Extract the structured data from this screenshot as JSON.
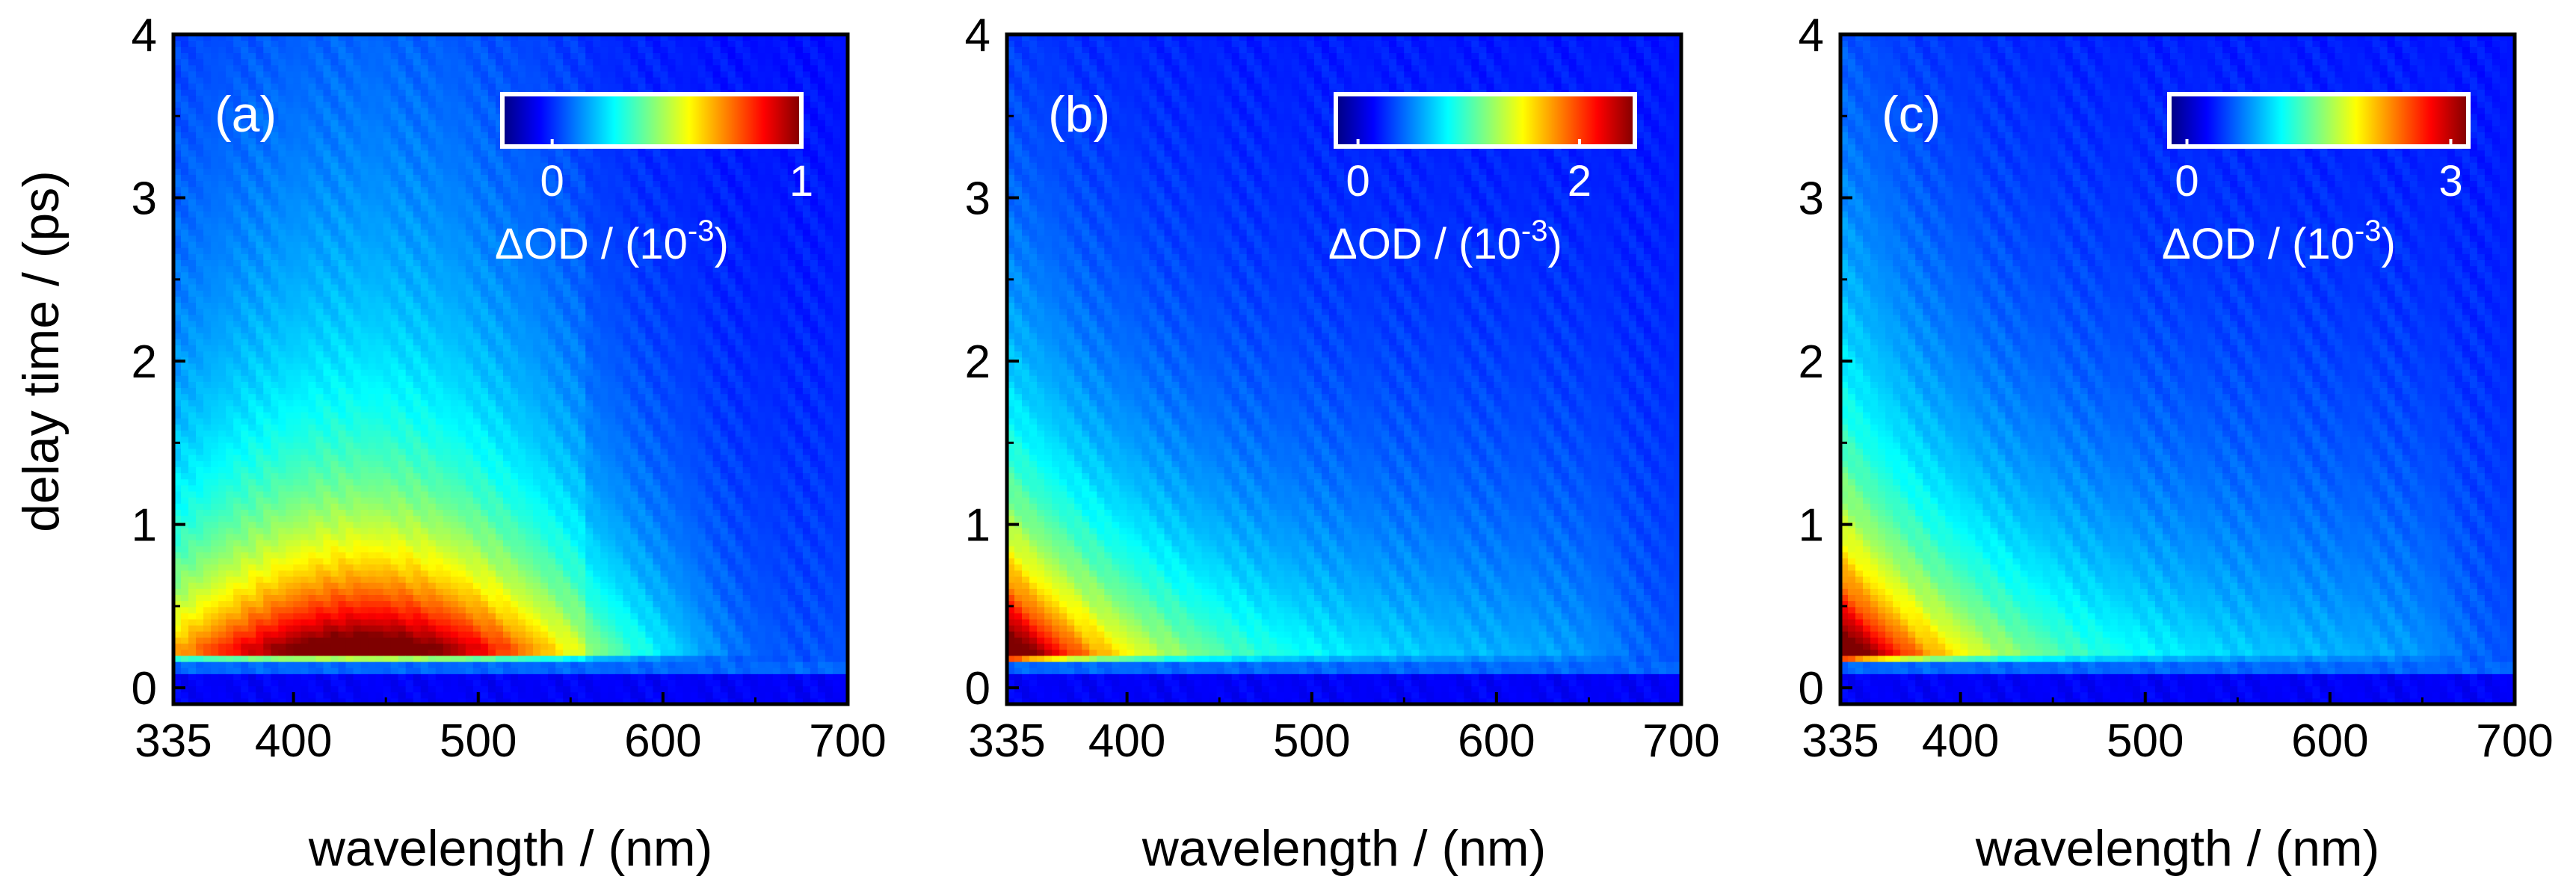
{
  "figure": {
    "ylabel": "delay time / (ps)"
  },
  "colormap": [
    "#00007f",
    "#0000ff",
    "#0080ff",
    "#00ffff",
    "#80ff80",
    "#ffff00",
    "#ff8000",
    "#ff0000",
    "#7f0000"
  ],
  "chart_data": [
    {
      "type": "heatmap",
      "panel_label": "(a)",
      "xlabel": "wavelength / (nm)",
      "ylabel": "delay time / (ps)",
      "xlim": [
        335,
        700
      ],
      "ylim": [
        -0.1,
        4
      ],
      "xticks": [
        335,
        400,
        500,
        600,
        700
      ],
      "yticks": [
        0,
        1,
        2,
        3,
        4
      ],
      "colorbar": {
        "label": "ΔOD / (10",
        "exponent": "-3",
        "label_close": ")",
        "ticks": [
          0,
          1
        ],
        "range": [
          -0.2,
          1.0
        ]
      },
      "peak": {
        "wavelength_nm": 440,
        "delay_ps": 0.22,
        "value": 1.0
      }
    },
    {
      "type": "heatmap",
      "panel_label": "(b)",
      "xlabel": "wavelength / (nm)",
      "ylabel": "",
      "xlim": [
        335,
        700
      ],
      "ylim": [
        -0.1,
        4
      ],
      "xticks": [
        335,
        400,
        500,
        600,
        700
      ],
      "yticks": [
        0,
        1,
        2,
        3,
        4
      ],
      "colorbar": {
        "label": "ΔOD / (10",
        "exponent": "-3",
        "label_close": ")",
        "ticks": [
          0,
          2
        ],
        "range": [
          -0.2,
          2.5
        ]
      },
      "peak": {
        "wavelength_nm": 337,
        "delay_ps": 0.5,
        "value": 2.5
      }
    },
    {
      "type": "heatmap",
      "panel_label": "(c)",
      "xlabel": "wavelength / (nm)",
      "ylabel": "",
      "xlim": [
        335,
        700
      ],
      "ylim": [
        -0.1,
        4
      ],
      "xticks": [
        335,
        400,
        500,
        600,
        700
      ],
      "yticks": [
        0,
        1,
        2,
        3,
        4
      ],
      "colorbar": {
        "label": "ΔOD / (10",
        "exponent": "-3",
        "label_close": ")",
        "ticks": [
          0,
          3
        ],
        "range": [
          -0.2,
          3.2
        ]
      },
      "peak": {
        "wavelength_nm": 337,
        "delay_ps": 0.5,
        "value": 3.2
      }
    }
  ]
}
